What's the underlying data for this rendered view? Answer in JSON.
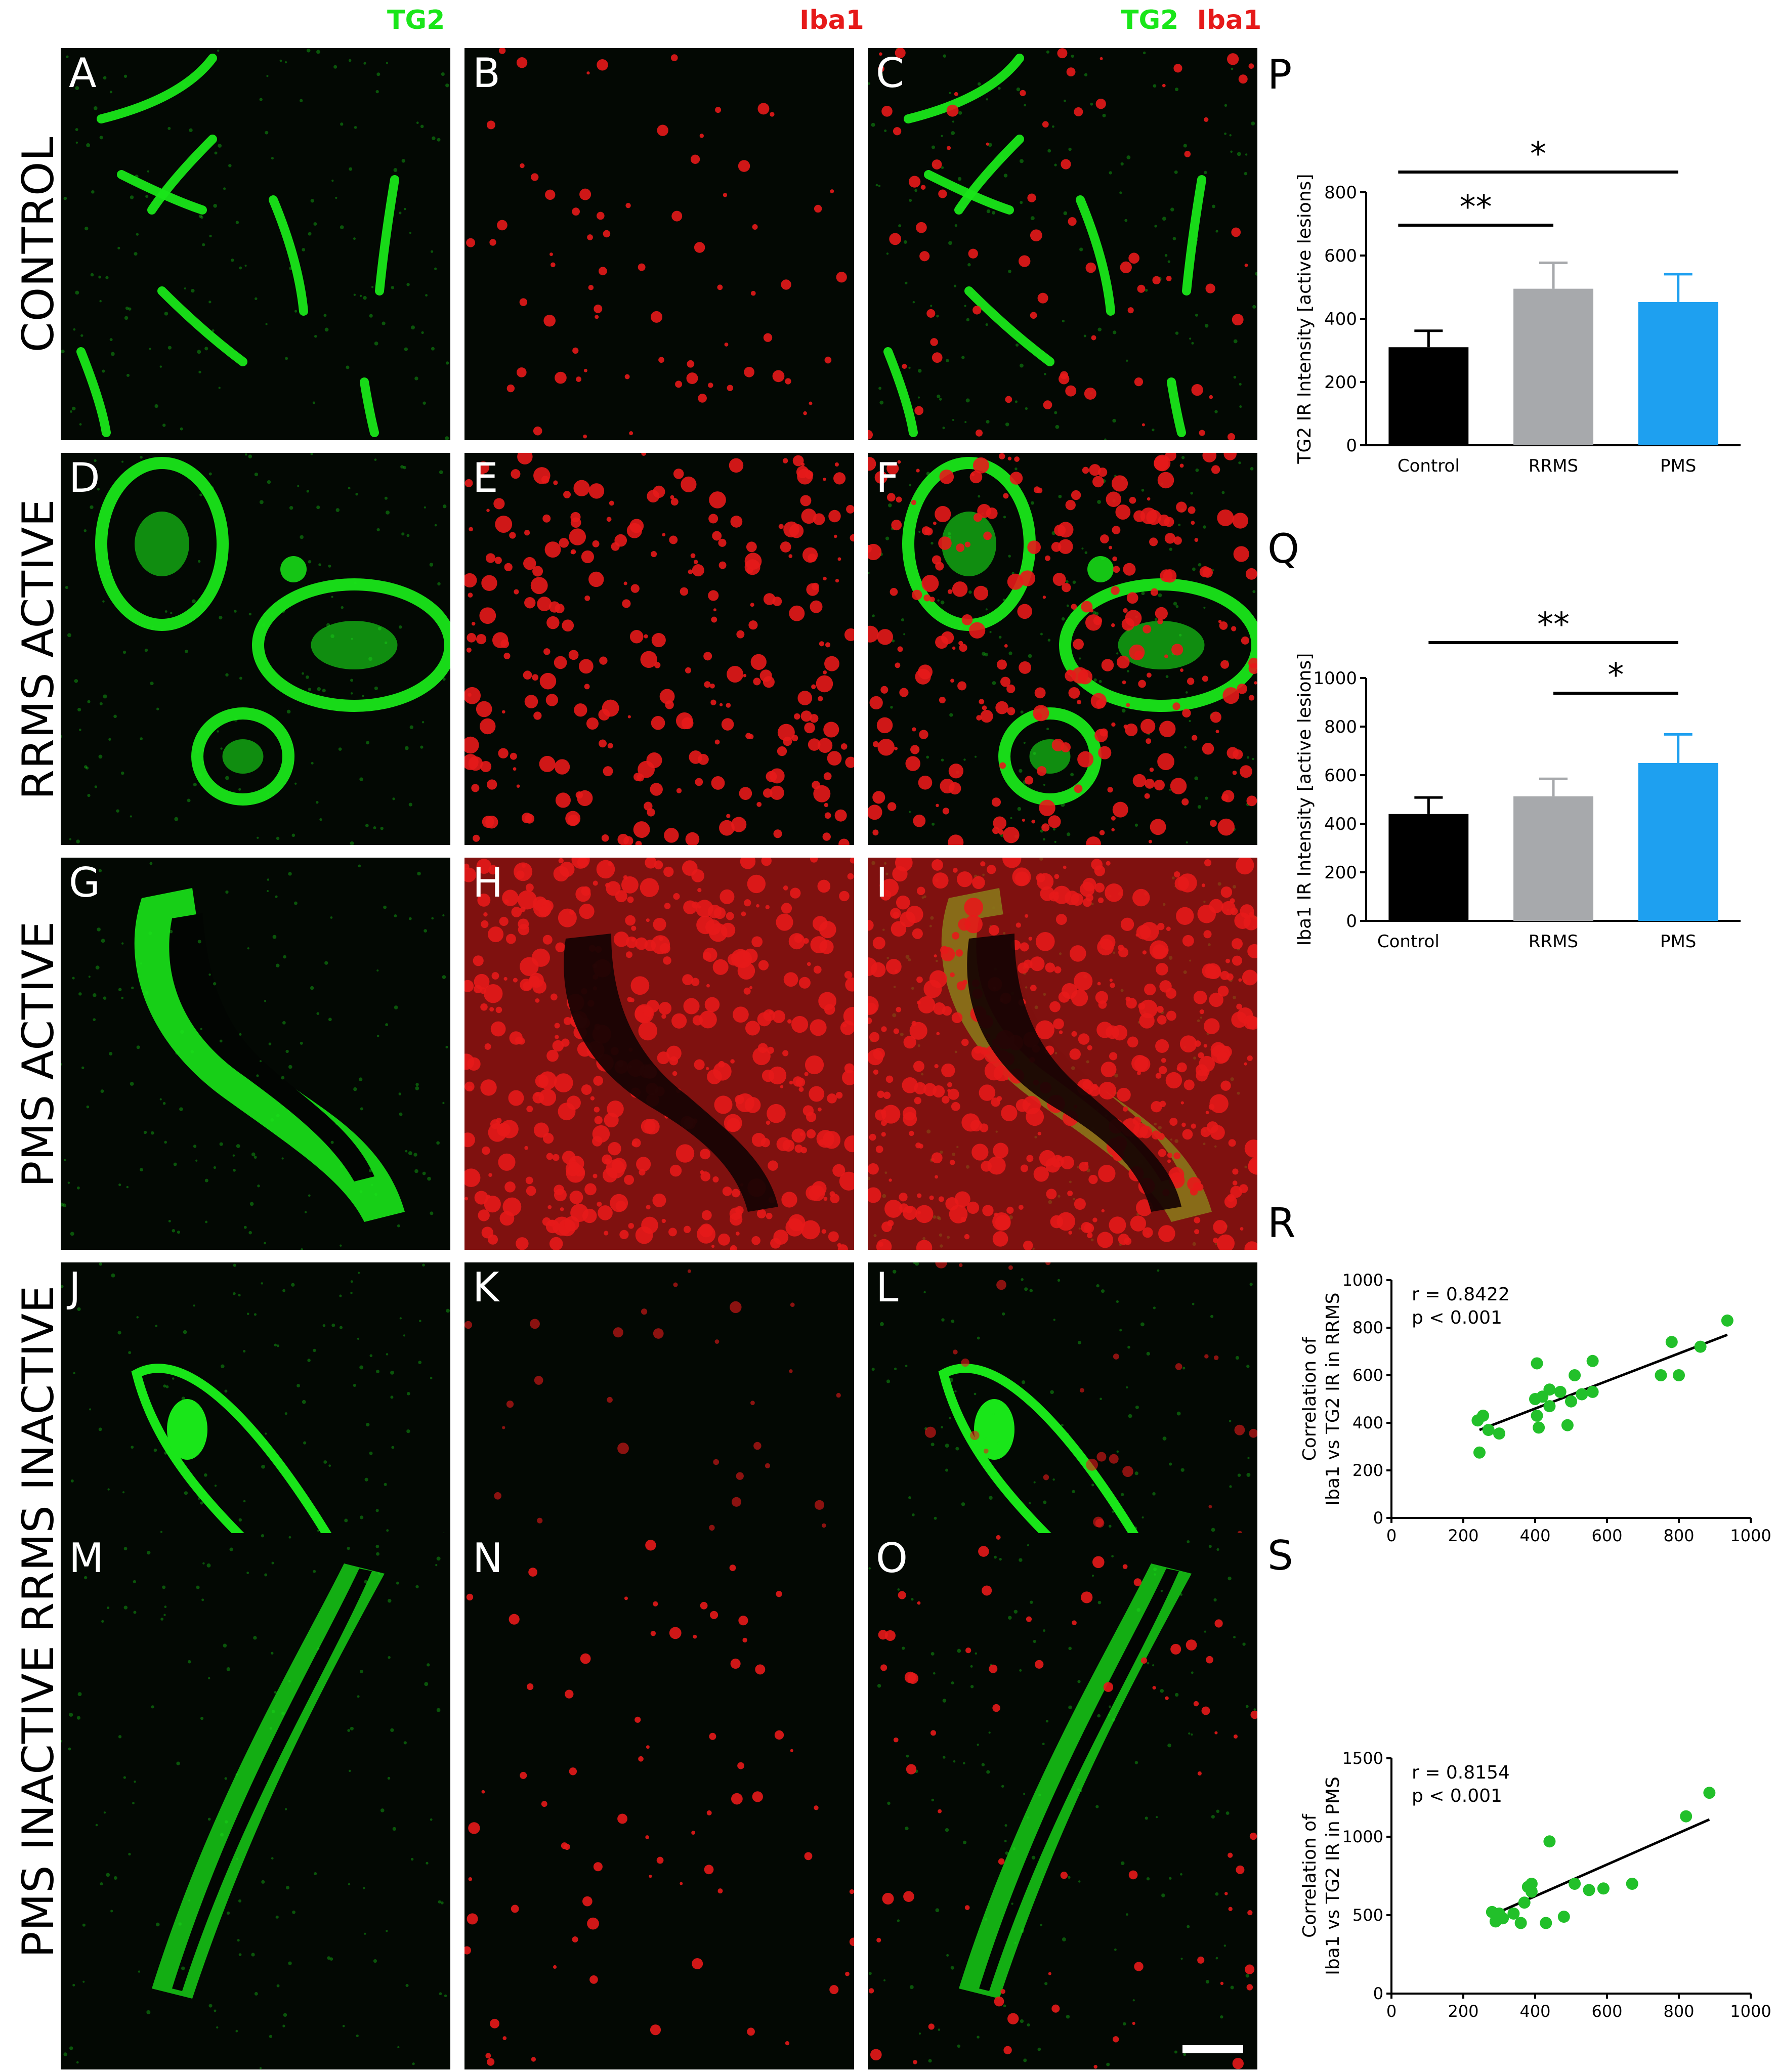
{
  "column_headers": [
    {
      "parts": [
        {
          "text": "TG2",
          "color": "#19e619"
        }
      ]
    },
    {
      "parts": [
        {
          "text": "Iba1",
          "color": "#e61919"
        }
      ]
    },
    {
      "parts": [
        {
          "text": "TG2",
          "color": "#19e619"
        },
        {
          "text": "Iba1",
          "color": "#e61919"
        }
      ]
    }
  ],
  "rows": [
    {
      "label": "CONTROL",
      "panels": [
        "A",
        "B",
        "C"
      ]
    },
    {
      "label": "RRMS ACTIVE",
      "panels": [
        "D",
        "E",
        "F"
      ]
    },
    {
      "label": "PMS ACTIVE",
      "panels": [
        "G",
        "H",
        "I"
      ]
    },
    {
      "label": "RRMS INACTIVE",
      "panels": [
        "J",
        "K",
        "L"
      ]
    },
    {
      "label": "PMS INACTIVE",
      "panels": [
        "M",
        "N",
        "O"
      ]
    }
  ],
  "colors": {
    "tg2": "#19e619",
    "iba1": "#e61919",
    "control": "#000000",
    "rrms": "#a7a9ac",
    "pms": "#1ea0f0",
    "scatter": "#22c02a"
  },
  "chart_data": [
    {
      "panel": "P",
      "type": "bar",
      "categories": [
        "Control",
        "RRMS",
        "PMS"
      ],
      "values": [
        310,
        495,
        453
      ],
      "errors": [
        52,
        82,
        88
      ],
      "ylabel": "TG2 IR Intensity [active lesions]",
      "ylim": [
        0,
        800
      ],
      "yticks": [
        0,
        200,
        400,
        600,
        800
      ],
      "significance": [
        {
          "from": "Control",
          "to": "RRMS",
          "label": "**"
        },
        {
          "from": "Control",
          "to": "PMS",
          "label": "*"
        }
      ]
    },
    {
      "panel": "Q",
      "type": "bar",
      "categories": [
        "Control",
        "RRMS",
        "PMS"
      ],
      "values": [
        440,
        513,
        650
      ],
      "errors": [
        68,
        72,
        118
      ],
      "ylabel": "Iba1 IR Intensity [active lesions]",
      "ylim": [
        0,
        1000
      ],
      "yticks": [
        0,
        200,
        400,
        600,
        800,
        1000
      ],
      "significance": [
        {
          "from": "Control",
          "to": "PMS",
          "label": "**"
        },
        {
          "from": "RRMS",
          "to": "PMS",
          "label": "*"
        }
      ]
    },
    {
      "panel": "R",
      "type": "scatter",
      "ylabel_lines": [
        "Correlation of",
        "Iba1 vs TG2 IR in RRMS"
      ],
      "xlim": [
        0,
        1000
      ],
      "ylim": [
        0,
        1000
      ],
      "xticks": [
        0,
        200,
        400,
        600,
        800,
        1000
      ],
      "yticks": [
        0,
        200,
        400,
        600,
        800,
        1000
      ],
      "annotations": [
        "r = 0.8422",
        "p < 0.001"
      ],
      "trendline": [
        [
          245,
          370
        ],
        [
          935,
          770
        ]
      ],
      "points": [
        [
          240,
          410
        ],
        [
          245,
          275
        ],
        [
          255,
          430
        ],
        [
          270,
          370
        ],
        [
          300,
          355
        ],
        [
          400,
          500
        ],
        [
          405,
          650
        ],
        [
          405,
          430
        ],
        [
          410,
          380
        ],
        [
          420,
          510
        ],
        [
          440,
          540
        ],
        [
          440,
          470
        ],
        [
          470,
          530
        ],
        [
          490,
          390
        ],
        [
          500,
          490
        ],
        [
          510,
          600
        ],
        [
          530,
          520
        ],
        [
          560,
          530
        ],
        [
          560,
          660
        ],
        [
          750,
          600
        ],
        [
          780,
          740
        ],
        [
          800,
          600
        ],
        [
          860,
          720
        ],
        [
          935,
          830
        ]
      ]
    },
    {
      "panel": "S",
      "type": "scatter",
      "ylabel_lines": [
        "Correlation of",
        "Iba1 vs TG2 IR in PMS"
      ],
      "xlim": [
        0,
        1000
      ],
      "ylim": [
        0,
        1500
      ],
      "xticks": [
        0,
        200,
        400,
        600,
        800,
        1000
      ],
      "yticks": [
        0,
        500,
        1000,
        1500
      ],
      "annotations": [
        "r = 0.8154",
        "p < 0.001"
      ],
      "trendline": [
        [
          290,
          510
        ],
        [
          885,
          1110
        ]
      ],
      "points": [
        [
          280,
          520
        ],
        [
          290,
          460
        ],
        [
          300,
          510
        ],
        [
          310,
          480
        ],
        [
          340,
          510
        ],
        [
          360,
          450
        ],
        [
          370,
          580
        ],
        [
          380,
          680
        ],
        [
          390,
          650
        ],
        [
          390,
          700
        ],
        [
          430,
          450
        ],
        [
          440,
          970
        ],
        [
          480,
          490
        ],
        [
          510,
          700
        ],
        [
          550,
          660
        ],
        [
          590,
          670
        ],
        [
          670,
          700
        ],
        [
          820,
          1130
        ],
        [
          885,
          1280
        ]
      ]
    }
  ]
}
